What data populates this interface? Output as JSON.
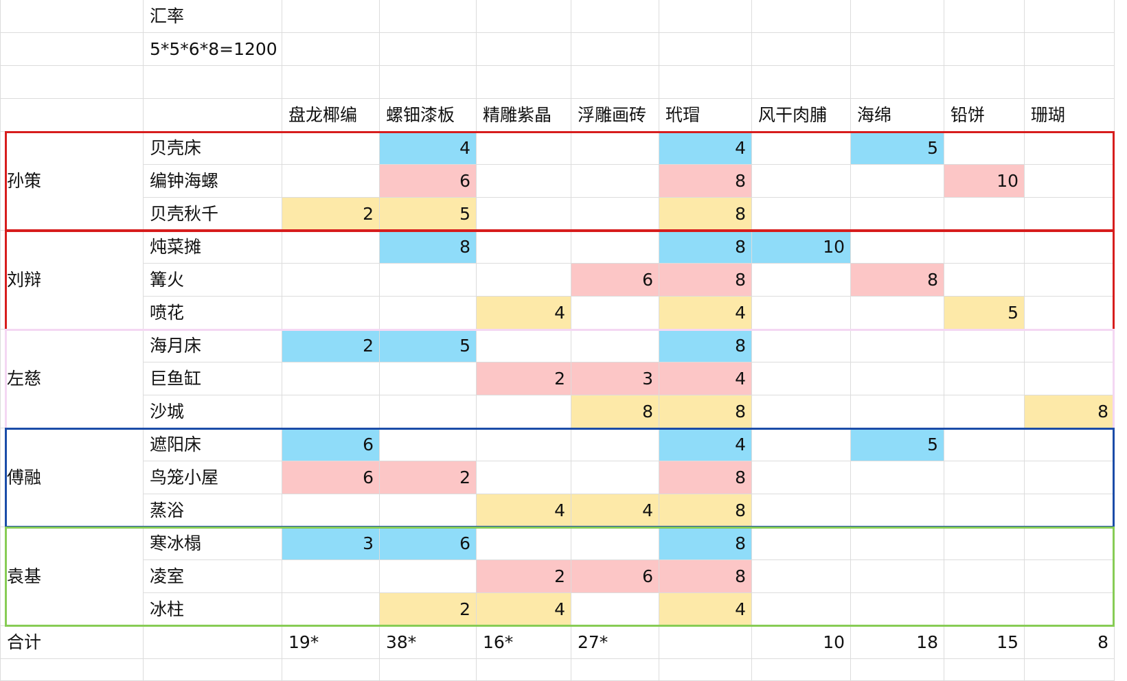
{
  "sheet": {
    "top_info": {
      "row1": "汇率",
      "row2": "5*5*6*8=1200"
    },
    "headers": [
      "盘龙椰编",
      "螺钿漆板",
      "精雕紫晶",
      "浮雕画砖",
      "玳瑁",
      "风干肉脯",
      "海绵",
      "铅饼",
      "珊瑚"
    ],
    "groups": [
      {
        "name": "孙策",
        "items": [
          {
            "label": "贝壳床",
            "values": [
              "",
              "4",
              "",
              "",
              "4",
              "",
              "5",
              "",
              ""
            ],
            "colors": [
              "",
              "blue",
              "",
              "",
              "blue",
              "",
              "blue",
              "",
              ""
            ]
          },
          {
            "label": "编钟海螺",
            "values": [
              "",
              "6",
              "",
              "",
              "8",
              "",
              "",
              "10",
              ""
            ],
            "colors": [
              "",
              "pink",
              "",
              "",
              "pink",
              "",
              "",
              "pink",
              ""
            ]
          },
          {
            "label": "贝壳秋千",
            "values": [
              "2",
              "5",
              "",
              "",
              "8",
              "",
              "",
              "",
              ""
            ],
            "colors": [
              "yellow",
              "yellow",
              "",
              "",
              "yellow",
              "",
              "",
              "",
              ""
            ]
          }
        ]
      },
      {
        "name": "刘辩",
        "items": [
          {
            "label": "炖菜摊",
            "values": [
              "",
              "8",
              "",
              "",
              "8",
              "10",
              "",
              "",
              ""
            ],
            "colors": [
              "",
              "blue",
              "",
              "",
              "blue",
              "blue",
              "",
              "",
              ""
            ]
          },
          {
            "label": "篝火",
            "values": [
              "",
              "",
              "",
              "6",
              "8",
              "",
              "8",
              "",
              ""
            ],
            "colors": [
              "",
              "",
              "",
              "pink",
              "pink",
              "",
              "pink",
              "",
              ""
            ]
          },
          {
            "label": "喷花",
            "values": [
              "",
              "",
              "4",
              "",
              "4",
              "",
              "",
              "5",
              ""
            ],
            "colors": [
              "",
              "",
              "yellow",
              "",
              "yellow",
              "",
              "",
              "yellow",
              ""
            ]
          }
        ]
      },
      {
        "name": "左慈",
        "items": [
          {
            "label": "海月床",
            "values": [
              "2",
              "5",
              "",
              "",
              "8",
              "",
              "",
              "",
              ""
            ],
            "colors": [
              "blue",
              "blue",
              "",
              "",
              "blue",
              "",
              "",
              "",
              ""
            ]
          },
          {
            "label": "巨鱼缸",
            "values": [
              "",
              "",
              "2",
              "3",
              "4",
              "",
              "",
              "",
              ""
            ],
            "colors": [
              "",
              "",
              "pink",
              "pink",
              "pink",
              "",
              "",
              "",
              ""
            ]
          },
          {
            "label": "沙城",
            "values": [
              "",
              "",
              "",
              "8",
              "8",
              "",
              "",
              "",
              "8"
            ],
            "colors": [
              "",
              "",
              "",
              "yellow",
              "yellow",
              "",
              "",
              "",
              "yellow"
            ]
          }
        ]
      },
      {
        "name": "傅融",
        "items": [
          {
            "label": "遮阳床",
            "values": [
              "6",
              "",
              "",
              "",
              "4",
              "",
              "5",
              "",
              ""
            ],
            "colors": [
              "blue",
              "",
              "",
              "",
              "blue",
              "",
              "blue",
              "",
              ""
            ]
          },
          {
            "label": "鸟笼小屋",
            "values": [
              "6",
              "2",
              "",
              "",
              "8",
              "",
              "",
              "",
              ""
            ],
            "colors": [
              "pink",
              "pink",
              "",
              "",
              "pink",
              "",
              "",
              "",
              ""
            ]
          },
          {
            "label": "蒸浴",
            "values": [
              "",
              "",
              "4",
              "4",
              "8",
              "",
              "",
              "",
              ""
            ],
            "colors": [
              "",
              "",
              "yellow",
              "yellow",
              "yellow",
              "",
              "",
              "",
              ""
            ]
          }
        ]
      },
      {
        "name": "袁基",
        "items": [
          {
            "label": "寒冰榻",
            "values": [
              "3",
              "6",
              "",
              "",
              "8",
              "",
              "",
              "",
              ""
            ],
            "colors": [
              "blue",
              "blue",
              "",
              "",
              "blue",
              "",
              "",
              "",
              ""
            ]
          },
          {
            "label": "凌室",
            "values": [
              "",
              "",
              "2",
              "6",
              "8",
              "",
              "",
              "",
              ""
            ],
            "colors": [
              "",
              "",
              "pink",
              "pink",
              "pink",
              "",
              "",
              "",
              ""
            ]
          },
          {
            "label": "冰柱",
            "values": [
              "",
              "2",
              "4",
              "",
              "4",
              "",
              "",
              "",
              ""
            ],
            "colors": [
              "",
              "yellow",
              "yellow",
              "",
              "yellow",
              "",
              "",
              "",
              ""
            ]
          }
        ]
      }
    ],
    "totals": {
      "label": "合计",
      "values": [
        "19*",
        "38*",
        "16*",
        "27*",
        "",
        "10",
        "18",
        "15",
        "8"
      ]
    }
  }
}
